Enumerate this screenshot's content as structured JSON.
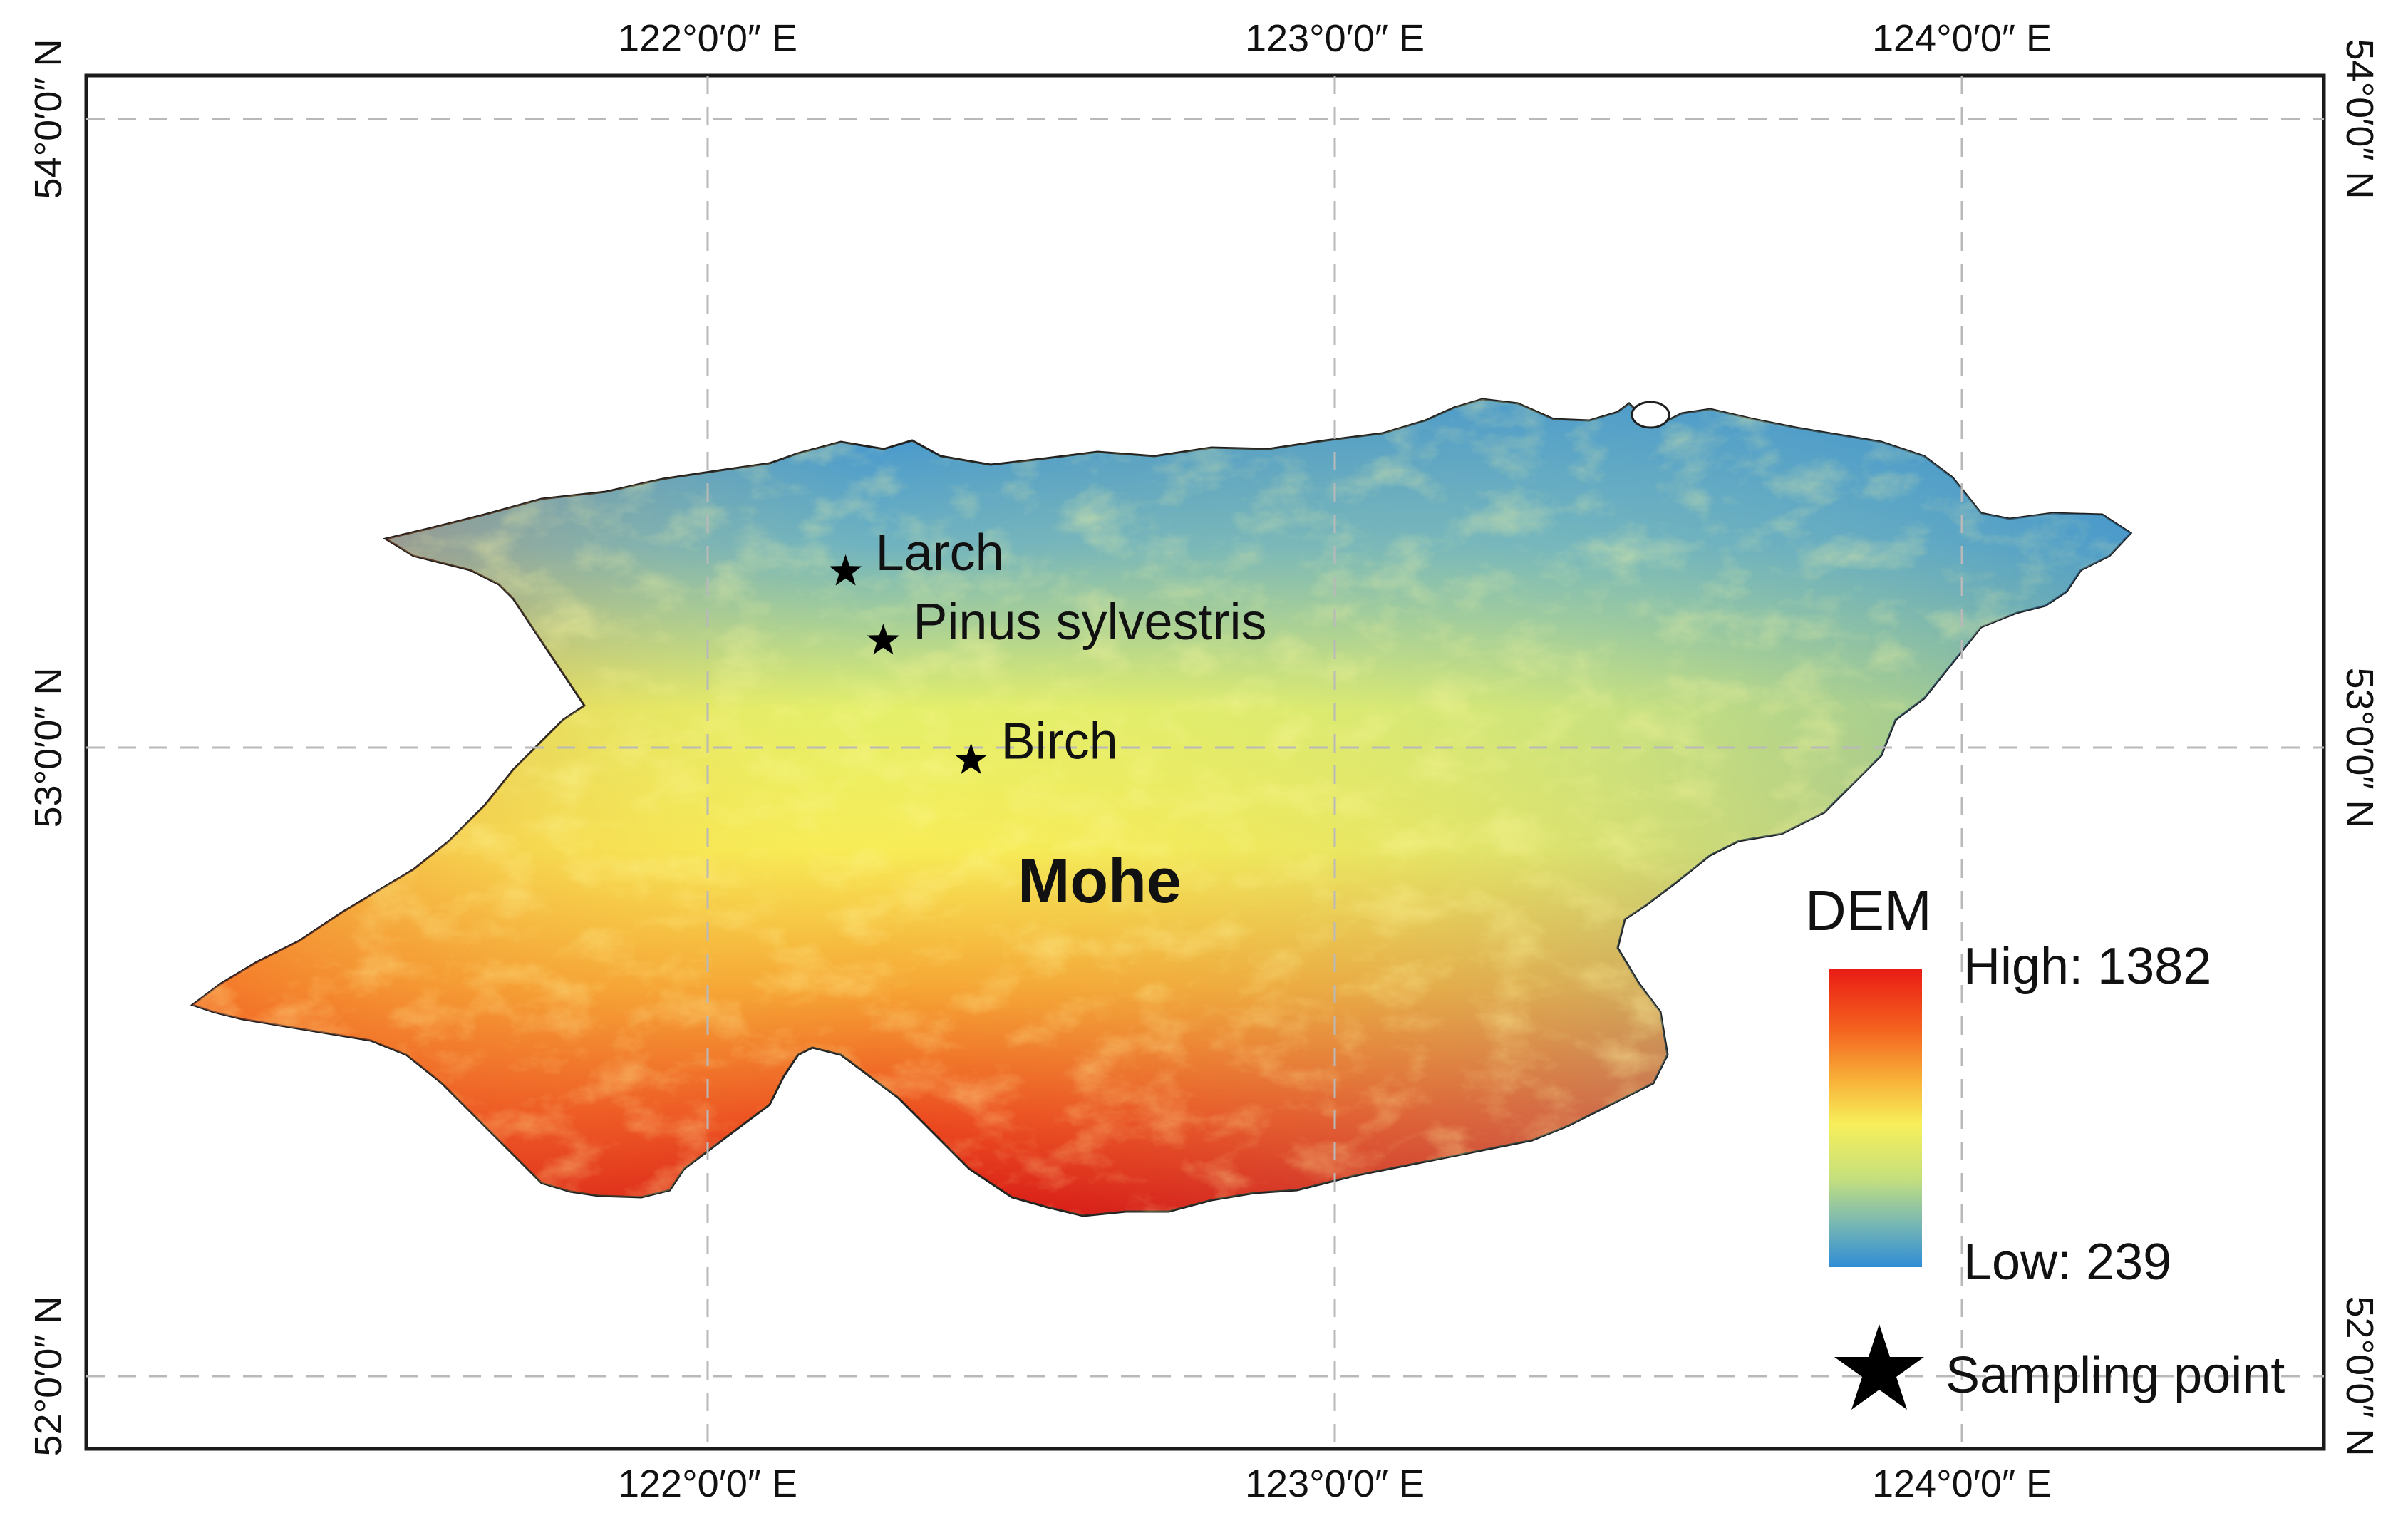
{
  "map": {
    "graticule": {
      "longitudes": [
        {
          "value": 122,
          "label": "122°0′0″ E"
        },
        {
          "value": 123,
          "label": "123°0′0″ E"
        },
        {
          "value": 124,
          "label": "124°0′0″ E"
        }
      ],
      "latitudes": [
        {
          "value": 54,
          "label": "54°0′0″ N"
        },
        {
          "value": 53,
          "label": "53°0′0″ N"
        },
        {
          "value": 52,
          "label": "52°0′0″ N"
        }
      ]
    },
    "region_label": "Mohe",
    "sampling_points": [
      {
        "name": "Larch",
        "lon": 122.22,
        "lat": 53.28
      },
      {
        "name": "Pinus sylvestris",
        "lon": 122.28,
        "lat": 53.17
      },
      {
        "name": "Birch",
        "lon": 122.42,
        "lat": 52.98
      }
    ]
  },
  "legend": {
    "title": "DEM",
    "high_label": "High: 1382",
    "low_label": "Low: 239",
    "high_value": 1382,
    "low_value": 239,
    "gradient_colors": [
      "#e60d0d",
      "#f36a20",
      "#f7b63a",
      "#f6f25b",
      "#c9e27d",
      "#88c2a5",
      "#3d99d8"
    ],
    "sampling_label": "Sampling point"
  },
  "colors": {
    "high": "#e8221b",
    "mid_high": "#f4a732",
    "mid": "#f4ef5c",
    "mid_low": "#a7d29a",
    "low": "#3992d4",
    "outline": "#222222"
  }
}
